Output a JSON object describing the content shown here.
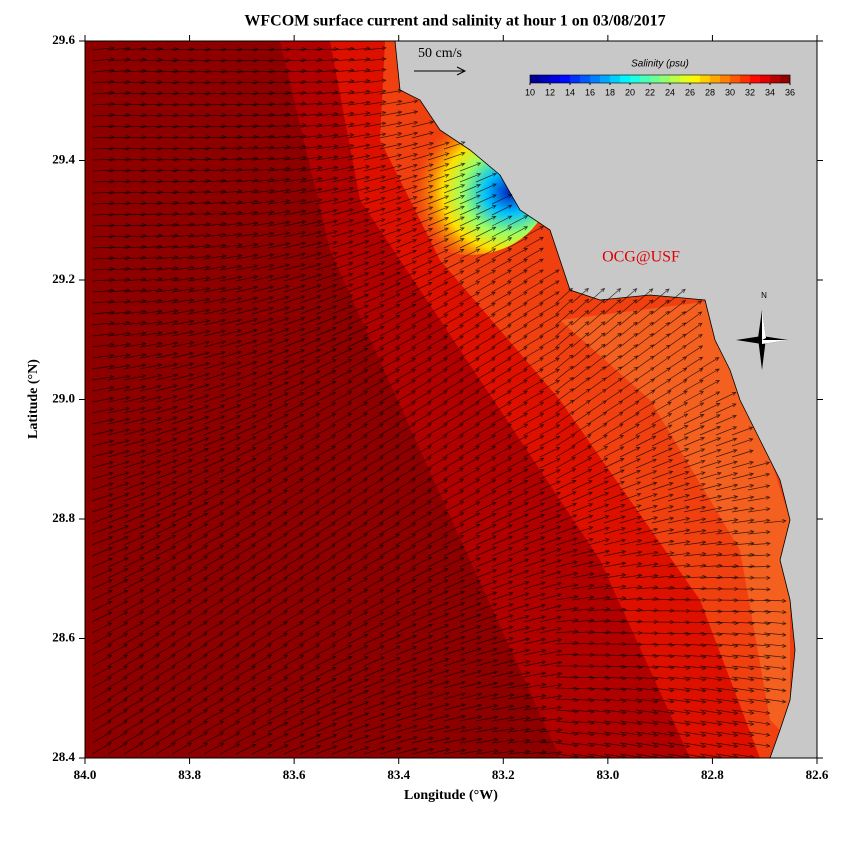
{
  "title": "WFCOM surface current and salinity at hour 1 on 03/08/2017",
  "x_label": "Longitude (°W)",
  "y_label": "Latitude (°N)",
  "xlim": [
    84.0,
    82.6
  ],
  "ylim": [
    28.4,
    29.6
  ],
  "xticks": [
    {
      "value": 84.0,
      "label": "84.0"
    },
    {
      "value": 83.8,
      "label": "83.8"
    },
    {
      "value": 83.6,
      "label": "83.6"
    },
    {
      "value": 83.4,
      "label": "83.4"
    },
    {
      "value": 83.2,
      "label": "83.2"
    },
    {
      "value": 83.0,
      "label": "83.0"
    },
    {
      "value": 82.8,
      "label": "82.8"
    },
    {
      "value": 82.6,
      "label": "82.6"
    }
  ],
  "yticks": [
    29.6,
    29.4,
    29.2,
    {
      "value": 29.0,
      "label": "29.0"
    },
    28.8,
    28.6,
    28.4
  ],
  "scale_label": "50 cm/s",
  "credit": "OCG@USF",
  "north_label": "N",
  "colorbar": {
    "title": "Salinity (psu)",
    "lim": [
      10,
      36
    ],
    "ticks": [
      10,
      12,
      14,
      16,
      18,
      20,
      22,
      24,
      26,
      28,
      30,
      32,
      34,
      36
    ]
  }
}
